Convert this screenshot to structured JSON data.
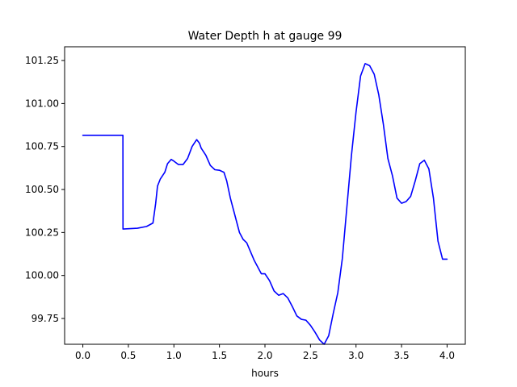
{
  "chart_data": {
    "type": "line",
    "title": "Water Depth h at gauge 99",
    "xlabel": "hours",
    "ylabel": "",
    "xlim": [
      -0.2,
      4.2
    ],
    "ylim": [
      99.6,
      101.33
    ],
    "xticks": [
      0.0,
      0.5,
      1.0,
      1.5,
      2.0,
      2.5,
      3.0,
      3.5,
      4.0
    ],
    "xtick_labels": [
      "0.0",
      "0.5",
      "1.0",
      "1.5",
      "2.0",
      "2.5",
      "3.0",
      "3.5",
      "4.0"
    ],
    "yticks": [
      99.75,
      100.0,
      100.25,
      100.5,
      100.75,
      101.0,
      101.25
    ],
    "ytick_labels": [
      "99.75",
      "100.00",
      "100.25",
      "100.50",
      "100.75",
      "101.00",
      "101.25"
    ],
    "grid": false,
    "series": [
      {
        "color": "#0000ff",
        "x": [
          0.0,
          0.44,
          0.441,
          0.6,
          0.7,
          0.77,
          0.8,
          0.82,
          0.85,
          0.9,
          0.93,
          0.97,
          1.0,
          1.05,
          1.1,
          1.15,
          1.2,
          1.25,
          1.28,
          1.3,
          1.35,
          1.4,
          1.45,
          1.5,
          1.55,
          1.58,
          1.62,
          1.66,
          1.72,
          1.76,
          1.8,
          1.84,
          1.88,
          1.92,
          1.96,
          2.0,
          2.05,
          2.1,
          2.15,
          2.2,
          2.25,
          2.3,
          2.35,
          2.4,
          2.45,
          2.5,
          2.55,
          2.6,
          2.65,
          2.7,
          2.75,
          2.8,
          2.85,
          2.9,
          2.95,
          3.0,
          3.05,
          3.1,
          3.15,
          3.2,
          3.25,
          3.3,
          3.35,
          3.4,
          3.45,
          3.5,
          3.55,
          3.6,
          3.65,
          3.7,
          3.75,
          3.8,
          3.85,
          3.9,
          3.95,
          4.0
        ],
        "y": [
          100.815,
          100.815,
          100.27,
          100.275,
          100.285,
          100.305,
          100.42,
          100.52,
          100.56,
          100.6,
          100.65,
          100.675,
          100.665,
          100.645,
          100.645,
          100.68,
          100.75,
          100.79,
          100.77,
          100.74,
          100.7,
          100.64,
          100.615,
          100.612,
          100.6,
          100.55,
          100.45,
          100.37,
          100.25,
          100.21,
          100.19,
          100.14,
          100.09,
          100.05,
          100.01,
          100.01,
          99.97,
          99.91,
          99.885,
          99.895,
          99.87,
          99.82,
          99.765,
          99.745,
          99.74,
          99.71,
          99.67,
          99.625,
          99.6,
          99.65,
          99.78,
          99.9,
          100.1,
          100.4,
          100.7,
          100.95,
          101.16,
          101.232,
          101.22,
          101.17,
          101.05,
          100.88,
          100.68,
          100.58,
          100.45,
          100.42,
          100.43,
          100.46,
          100.55,
          100.65,
          100.67,
          100.62,
          100.45,
          100.2,
          100.095,
          100.095
        ]
      }
    ]
  }
}
